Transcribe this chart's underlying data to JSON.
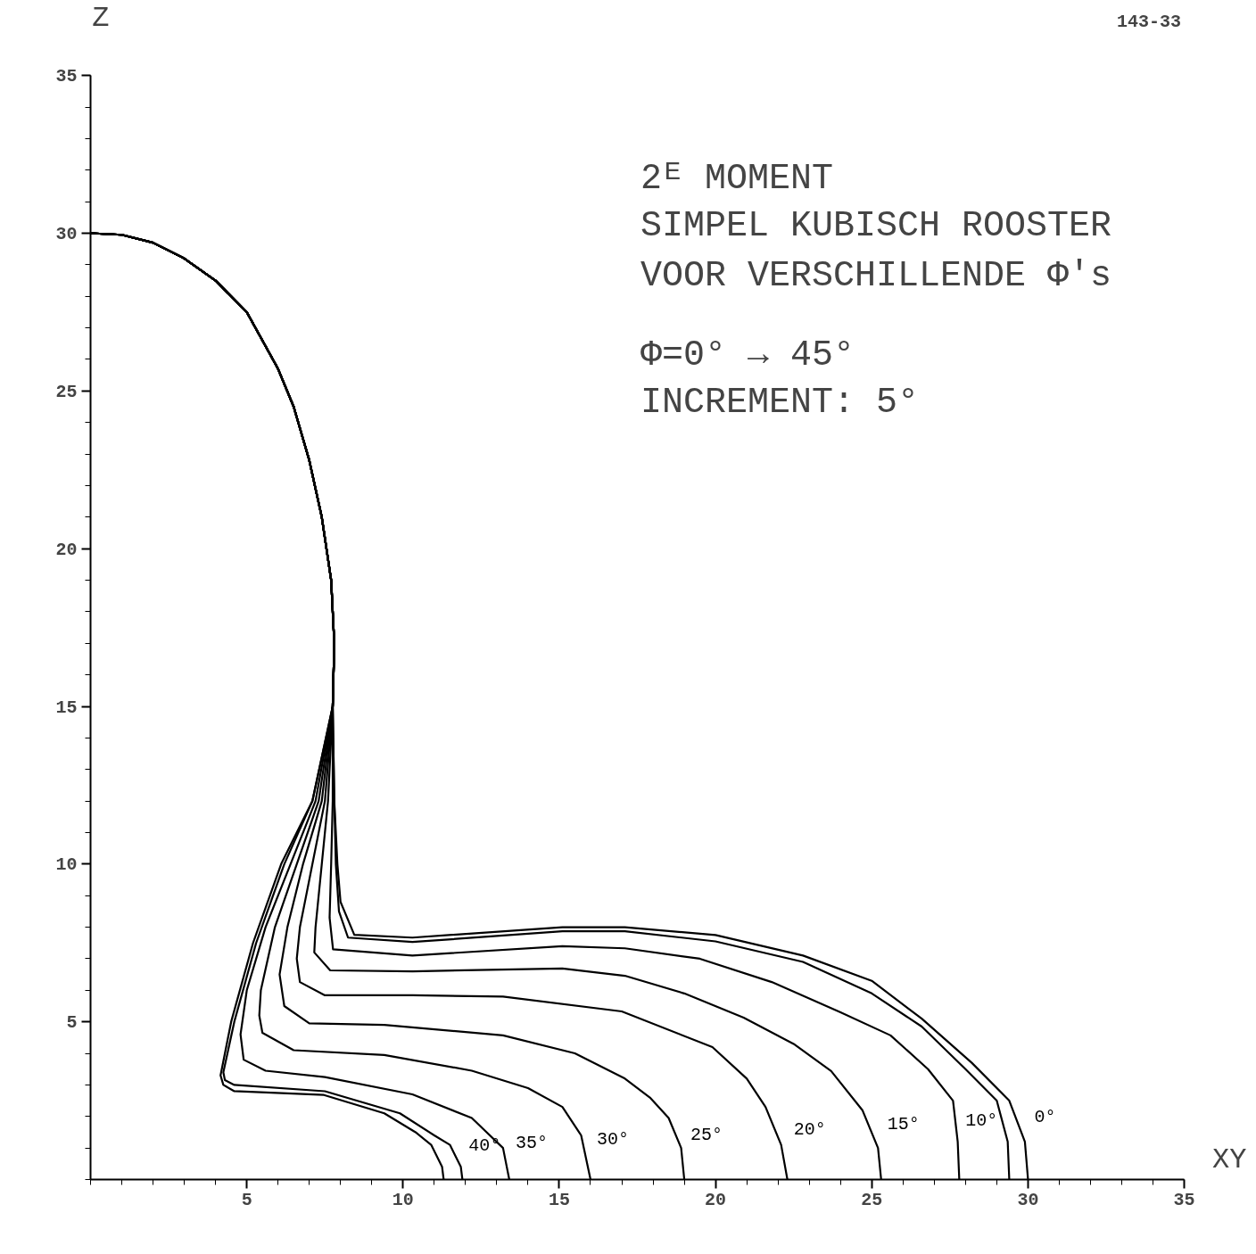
{
  "chart_data": {
    "type": "line",
    "xlabel": "XY",
    "ylabel": "Z",
    "xlim": [
      0,
      35
    ],
    "ylim": [
      0,
      35
    ],
    "xticks": [
      5,
      10,
      15,
      20,
      25,
      30,
      35
    ],
    "yticks": [
      5,
      10,
      15,
      20,
      25,
      30,
      35
    ],
    "grid": false,
    "annotations": [
      "2ᴱ MOMENT",
      "SIMPEL KUBISCH ROOSTER",
      "VOOR VERSCHILLENDE Φ's",
      "Φ=0° → 45°",
      "INCREMENT: 5°",
      "143-33"
    ],
    "series": [
      {
        "name": "0°",
        "color": "#000000",
        "x": [
          0,
          1,
          2,
          3,
          4,
          5,
          6,
          6.5,
          7,
          7.4,
          7.7,
          7.8,
          7.75,
          7.8,
          7.9,
          8.0,
          8.44,
          10.3,
          15.1,
          17.1,
          20,
          22.8,
          25,
          26.6,
          28.2,
          29.4,
          29.9,
          30
        ],
        "values": [
          30,
          29.95,
          29.7,
          29.2,
          28.5,
          27.5,
          25.7,
          24.5,
          22.8,
          21,
          19,
          17,
          15,
          12,
          10,
          8.8,
          7.76,
          7.67,
          8.0,
          8.0,
          7.75,
          7.1,
          6.3,
          5.1,
          3.7,
          2.5,
          1.2,
          0
        ]
      },
      {
        "color": "#000000",
        "x": [
          0,
          1,
          2,
          3,
          4,
          5,
          6,
          6.5,
          7,
          7.4,
          7.7,
          7.8,
          7.75,
          7.8,
          7.85,
          7.95,
          8.24,
          10.3,
          15.1,
          17.1,
          20,
          22.8,
          25,
          26.6,
          28,
          29,
          29.35,
          29.4
        ],
        "values": [
          30,
          29.95,
          29.7,
          29.2,
          28.5,
          27.5,
          25.7,
          24.5,
          22.8,
          21,
          19,
          17,
          15,
          12,
          10,
          8.5,
          7.67,
          7.53,
          7.87,
          7.87,
          7.55,
          6.9,
          5.9,
          4.85,
          3.5,
          2.5,
          1.2,
          0
        ]
      },
      {
        "name": "10°",
        "color": "#000000",
        "x": [
          0,
          1,
          2,
          3,
          4,
          5,
          6,
          6.5,
          7,
          7.4,
          7.7,
          7.8,
          7.75,
          7.75,
          7.7,
          7.65,
          7.76,
          10.3,
          15.1,
          17.1,
          19.5,
          21.8,
          24,
          25.6,
          26.8,
          27.6,
          27.75,
          27.8
        ],
        "values": [
          30,
          29.95,
          29.7,
          29.2,
          28.5,
          27.5,
          25.7,
          24.5,
          22.8,
          21,
          19,
          17,
          15,
          12,
          10,
          8.3,
          7.3,
          7.1,
          7.4,
          7.33,
          7.0,
          6.26,
          5.3,
          4.57,
          3.5,
          2.5,
          1.2,
          0
        ]
      },
      {
        "name": "15°",
        "color": "#000000",
        "x": [
          0,
          1,
          2,
          3,
          4,
          5,
          6,
          6.5,
          7,
          7.4,
          7.7,
          7.8,
          7.75,
          7.6,
          7.4,
          7.2,
          7.16,
          7.67,
          10.3,
          15.1,
          17.1,
          19,
          20.9,
          22.5,
          23.7,
          24.7,
          25.2,
          25.3
        ],
        "values": [
          30,
          29.95,
          29.7,
          29.2,
          28.5,
          27.5,
          25.7,
          24.5,
          22.8,
          21,
          19,
          17,
          15,
          12,
          10,
          8,
          7.2,
          6.63,
          6.6,
          6.69,
          6.46,
          5.9,
          5.13,
          4.3,
          3.44,
          2.2,
          1.0,
          0
        ]
      },
      {
        "name": "20°",
        "color": "#000000",
        "x": [
          0,
          1,
          2,
          3,
          4,
          5,
          6,
          6.5,
          7,
          7.4,
          7.7,
          7.8,
          7.75,
          7.5,
          7.1,
          6.7,
          6.6,
          6.7,
          7.5,
          10.3,
          13.2,
          17,
          19.9,
          21,
          21.6,
          22.1,
          22.3
        ],
        "values": [
          30,
          29.95,
          29.7,
          29.2,
          28.5,
          27.5,
          25.7,
          24.5,
          22.8,
          21,
          19,
          17,
          15,
          12,
          10,
          8,
          7,
          6.26,
          5.84,
          5.84,
          5.8,
          5.33,
          4.2,
          3.2,
          2.3,
          1.1,
          0
        ]
      },
      {
        "name": "25°",
        "color": "#000000",
        "x": [
          0,
          1,
          2,
          3,
          4,
          5,
          6,
          6.5,
          7,
          7.4,
          7.7,
          7.8,
          7.75,
          7.4,
          6.8,
          6.3,
          6.05,
          6.2,
          7.0,
          9.4,
          13.2,
          15.5,
          17.1,
          17.9,
          18.5,
          18.9,
          19
        ],
        "values": [
          30,
          29.95,
          29.7,
          29.2,
          28.5,
          27.5,
          25.7,
          24.5,
          22.8,
          21,
          19,
          17,
          15,
          12,
          10,
          8,
          6.5,
          5.5,
          4.95,
          4.9,
          4.57,
          4.0,
          3.2,
          2.6,
          1.95,
          1.0,
          0
        ]
      },
      {
        "name": "30°",
        "color": "#000000",
        "x": [
          0,
          1,
          2,
          3,
          4,
          5,
          6,
          6.5,
          7,
          7.4,
          7.7,
          7.8,
          7.75,
          7.3,
          6.6,
          5.9,
          5.45,
          5.4,
          5.5,
          6.5,
          9.4,
          12.2,
          14,
          15.1,
          15.7,
          16
        ],
        "values": [
          30,
          29.95,
          29.7,
          29.2,
          28.5,
          27.5,
          25.7,
          24.5,
          22.8,
          21,
          19,
          17,
          15,
          12,
          10,
          8,
          6,
          5.2,
          4.65,
          4.1,
          3.95,
          3.45,
          2.9,
          2.3,
          1.4,
          0
        ]
      },
      {
        "name": "35°",
        "color": "#000000",
        "x": [
          0,
          1,
          2,
          3,
          4,
          5,
          6,
          6.5,
          7,
          7.4,
          7.7,
          7.8,
          7.75,
          7.2,
          6.4,
          5.6,
          5.0,
          4.8,
          4.9,
          5.6,
          7.5,
          10.3,
          12.2,
          13.2,
          13.4
        ],
        "values": [
          30,
          29.95,
          29.7,
          29.2,
          28.5,
          27.5,
          25.7,
          24.5,
          22.8,
          21,
          19,
          17,
          15,
          12,
          10,
          8,
          6,
          4.6,
          3.8,
          3.45,
          3.25,
          2.7,
          1.95,
          1.0,
          0
        ]
      },
      {
        "name": "40°",
        "color": "#000000",
        "x": [
          0,
          1,
          2,
          3,
          4,
          5,
          6,
          6.5,
          7,
          7.4,
          7.7,
          7.8,
          7.75,
          7.1,
          6.2,
          5.3,
          4.6,
          4.25,
          4.3,
          4.6,
          7.5,
          9.9,
          11.0,
          11.5,
          11.85,
          11.9
        ],
        "values": [
          30,
          29.95,
          29.7,
          29.2,
          28.5,
          27.5,
          25.7,
          24.5,
          22.8,
          21,
          19,
          17,
          15,
          12,
          10,
          7.5,
          5,
          3.4,
          3.15,
          3.0,
          2.8,
          2.1,
          1.4,
          1.1,
          0.4,
          0
        ]
      },
      {
        "color": "#000000",
        "x": [
          0,
          1,
          2,
          3,
          4,
          5,
          6,
          6.5,
          7,
          7.4,
          7.7,
          7.8,
          7.75,
          7.1,
          6.1,
          5.2,
          4.5,
          4.16,
          4.25,
          4.6,
          7.47,
          9.4,
          10.4,
          10.9,
          11.25,
          11.3
        ],
        "values": [
          30,
          29.95,
          29.7,
          29.2,
          28.5,
          27.5,
          25.7,
          24.5,
          22.8,
          21,
          19,
          17,
          15,
          12,
          10,
          7.5,
          5,
          3.3,
          3.0,
          2.8,
          2.68,
          2.1,
          1.5,
          1.1,
          0.4,
          0
        ]
      }
    ]
  }
}
